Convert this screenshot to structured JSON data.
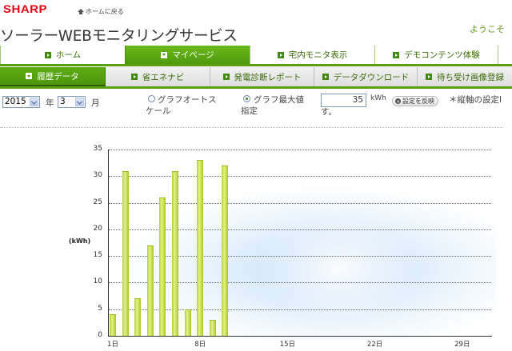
{
  "header": {
    "logo": "SHARP",
    "home_link": "ホームに戻る",
    "title": "ソーラーWEBモニタリングサービス",
    "welcome": "ようこそ"
  },
  "top_nav": [
    {
      "label": "ホーム",
      "active": false
    },
    {
      "label": "マイページ",
      "active": true
    },
    {
      "label": "宅内モニタ表示",
      "active": false
    },
    {
      "label": "デモコンテンツ体験",
      "active": false
    }
  ],
  "sub_nav": [
    {
      "label": "履歴データ",
      "active": true
    },
    {
      "label": "省エネナビ",
      "active": false
    },
    {
      "label": "発電診断レポート",
      "active": false
    },
    {
      "label": "データダウンロード",
      "active": false
    },
    {
      "label": "待ち受け画像登録",
      "active": false
    }
  ],
  "controls": {
    "year_value": "2015",
    "year_label": "年",
    "month_value": "3",
    "month_label": "月",
    "radio_auto_line1": "グラフオートス",
    "radio_auto_line2": "ケール",
    "radio_max_line1": "グラフ最大値",
    "radio_max_line2": "指定",
    "selected_radio": "max",
    "max_value": "35",
    "unit": "kWh",
    "apply_button": "設定を反映",
    "note_line1": "＊縦軸の設定I",
    "note_line2": "す。"
  },
  "chart_data": {
    "type": "bar",
    "title": "",
    "xlabel": "",
    "ylabel": "(kWh)",
    "ylim": [
      0,
      35
    ],
    "yticks": [
      0,
      5,
      10,
      15,
      20,
      25,
      30,
      35
    ],
    "xticks": [
      "1日",
      "8日",
      "15日",
      "22日",
      "29日"
    ],
    "grid": true,
    "categories": [
      "1日",
      "2日",
      "3日",
      "4日",
      "5日",
      "6日",
      "7日",
      "8日",
      "9日",
      "10日"
    ],
    "values": [
      4,
      31,
      7,
      17,
      26,
      31,
      5,
      33,
      3,
      32
    ],
    "bar_color": "#c8de4c"
  },
  "colors": {
    "brand_red": "#e60012",
    "nav_green": "#5aa013",
    "welcome_green": "#6a9a1f"
  }
}
